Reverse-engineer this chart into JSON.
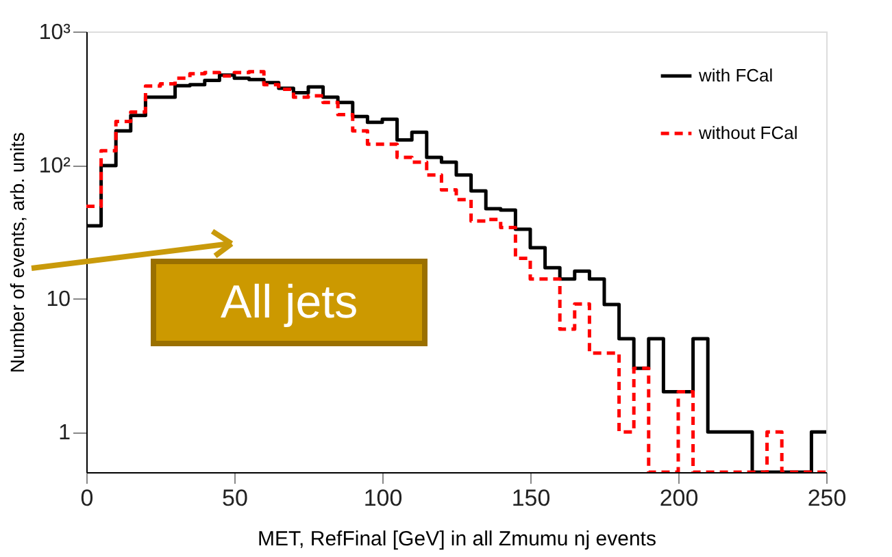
{
  "chart_data": {
    "type": "histogram",
    "xlabel": "MET, RefFinal [GeV] in all Zmumu nj events",
    "ylabel": "Number of events, arb. units",
    "annotations": [
      "All jets"
    ],
    "bins": [
      0,
      5,
      10,
      15,
      20,
      25,
      30,
      35,
      40,
      45,
      50,
      55,
      60,
      65,
      70,
      75,
      80,
      85,
      90,
      95,
      100,
      105,
      110,
      115,
      120,
      125,
      130,
      135,
      140,
      145,
      150,
      155,
      160,
      165,
      170,
      175,
      180,
      185,
      190,
      195,
      200,
      205,
      210,
      215,
      220,
      225,
      230,
      235,
      240,
      245,
      250
    ],
    "series": [
      {
        "name": "with FCal",
        "color": "#000000",
        "line_style": "solid",
        "values": [
          35,
          99,
          180,
          235,
          322,
          322,
          393,
          399,
          430,
          471,
          447,
          437,
          414,
          375,
          348,
          384,
          322,
          294,
          231,
          209,
          220,
          154,
          176,
          114,
          105,
          84,
          64,
          47,
          46,
          33,
          24,
          17,
          14,
          16,
          14,
          9,
          5,
          3,
          5,
          2,
          2,
          5,
          1,
          1,
          1,
          null,
          null,
          null,
          null,
          1
        ]
      },
      {
        "name": "without FCal",
        "color": "#ff0000",
        "line_style": "dashed",
        "values": [
          49,
          128,
          212,
          249,
          390,
          405,
          447,
          482,
          493,
          464,
          493,
          500,
          399,
          369,
          322,
          330,
          294,
          238,
          180,
          143,
          143,
          114,
          105,
          84,
          65,
          55,
          38,
          39,
          34,
          20,
          14,
          14,
          5.9,
          9.1,
          3.9,
          3.9,
          1,
          3,
          null,
          null,
          2,
          null,
          null,
          null,
          null,
          null,
          1,
          null,
          null,
          null
        ]
      }
    ],
    "xlim": [
      0,
      250
    ],
    "xticks": [
      0,
      50,
      100,
      150,
      200,
      250
    ],
    "ylim": [
      0.5,
      1000
    ],
    "yticks": [
      1,
      10,
      {
        "value": 100,
        "label": "10²"
      },
      {
        "value": 1000,
        "label": "10³"
      }
    ],
    "log": true,
    "legend": "top right"
  }
}
